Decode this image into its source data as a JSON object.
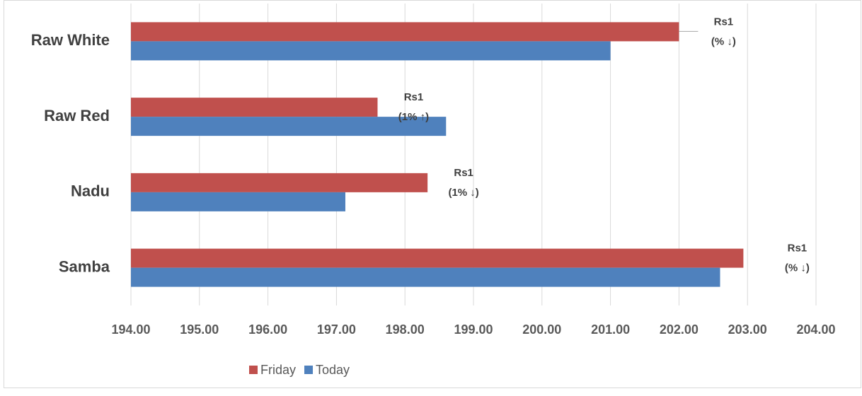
{
  "chart_data": {
    "type": "bar",
    "orientation": "horizontal",
    "categories": [
      "Raw White",
      "Raw Red",
      "Nadu",
      "Samba"
    ],
    "series": [
      {
        "name": "Friday",
        "color": "#c0504d",
        "values": [
          202.0,
          197.6,
          198.33,
          202.94
        ]
      },
      {
        "name": "Today",
        "color": "#4f81bd",
        "values": [
          201.0,
          198.6,
          197.13,
          202.6
        ]
      }
    ],
    "annotations": [
      [
        "Rs1",
        "(% ↓)"
      ],
      [
        "Rs1",
        "(1% ↑)"
      ],
      [
        "Rs1",
        "(1% ↓)"
      ],
      [
        "Rs1",
        "(% ↓)"
      ]
    ],
    "xlim": [
      194,
      204
    ],
    "xticks": [
      {
        "value": 194,
        "label": "194.00"
      },
      {
        "value": 195,
        "label": "195.00"
      },
      {
        "value": 196,
        "label": "196.00"
      },
      {
        "value": 197,
        "label": "197.00"
      },
      {
        "value": 198,
        "label": "198.00"
      },
      {
        "value": 199,
        "label": "199.00"
      },
      {
        "value": 200,
        "label": "200.00"
      },
      {
        "value": 201,
        "label": "201.00"
      },
      {
        "value": 202,
        "label": "202.00"
      },
      {
        "value": 203,
        "label": "203.00"
      },
      {
        "value": 204,
        "label": "204.00"
      }
    ],
    "grid": true,
    "legend": "bottom"
  }
}
